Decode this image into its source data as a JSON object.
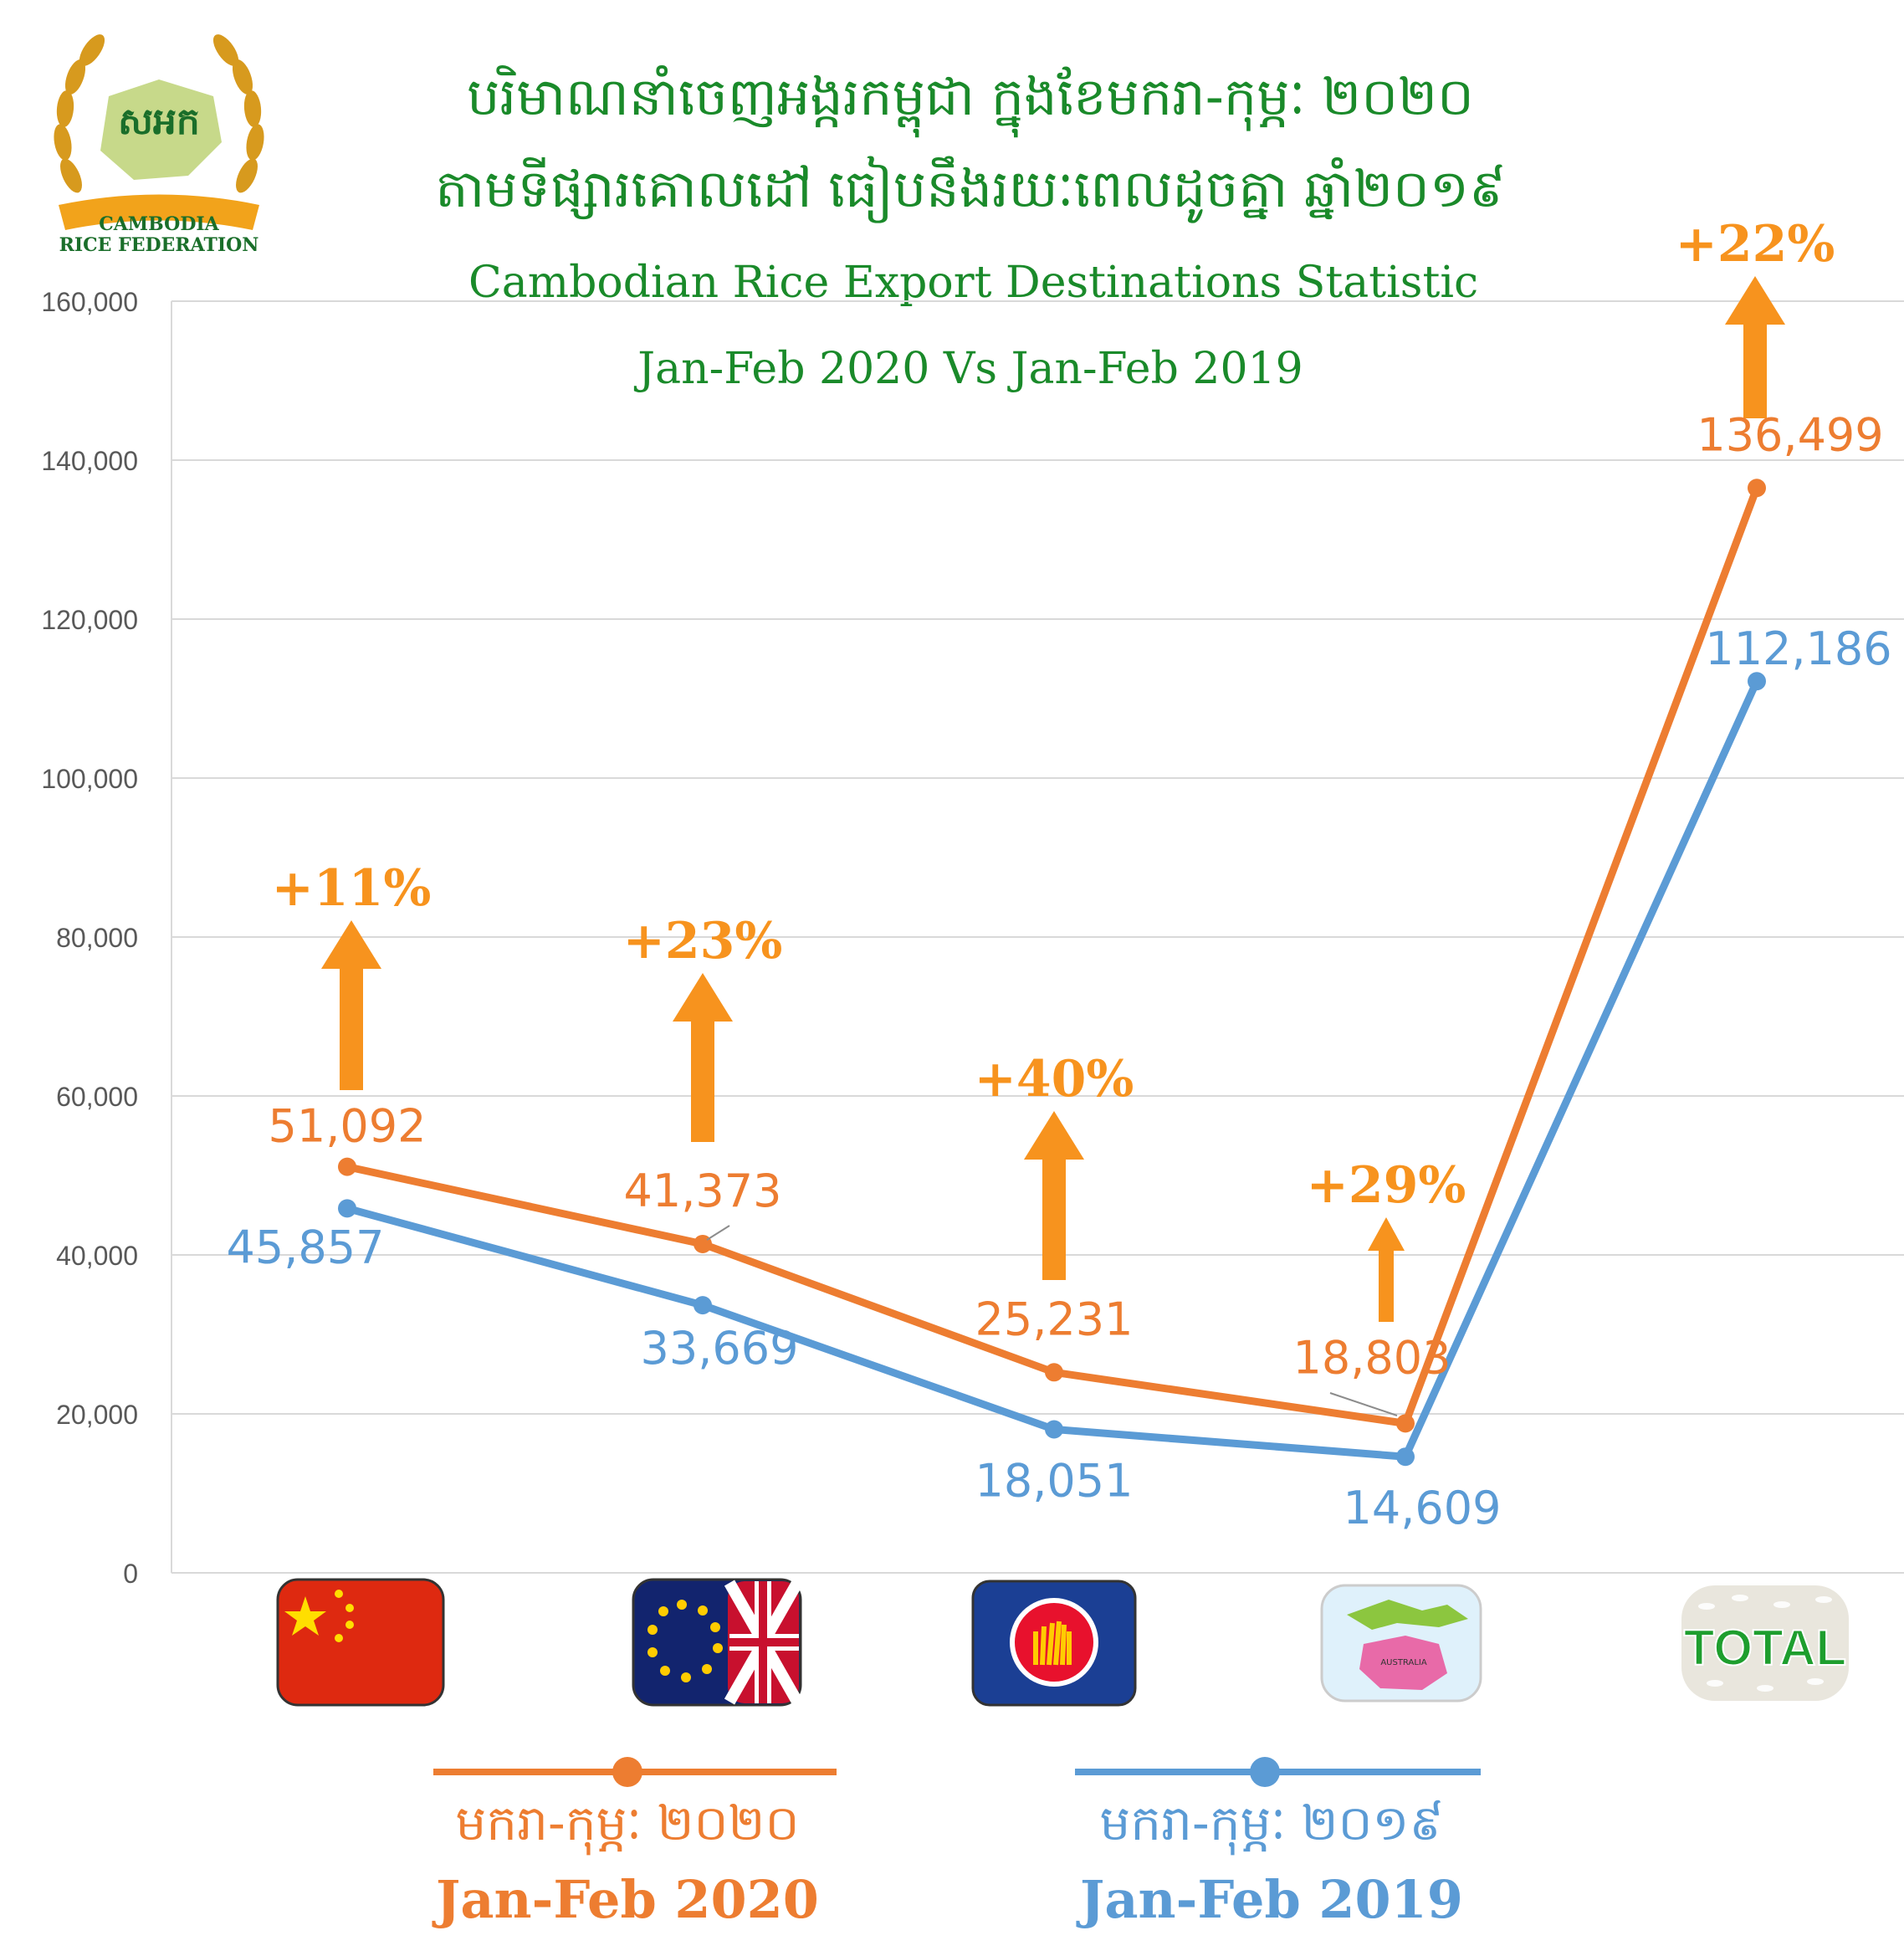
{
  "logo": {
    "org_kh": "សអក",
    "org_en_line1": "CAMBODIA",
    "org_en_line2": "RICE FEDERATION"
  },
  "title_kh_line1": "បរិមាណនាំចេញអង្ករកម្ពុជា ក្នុងខែមករា-កុម្ភៈ ២០២០",
  "title_kh_line2": "តាមទីផ្សារគោលដៅ ធៀបនឹងរយៈពេលដូចគ្នា ឆ្នាំ២០១៩",
  "title_en_line1": "Cambodian Rice Export Destinations Statistic",
  "title_en_line2": "Jan-Feb 2020 Vs Jan-Feb 2019",
  "colors": {
    "series_2020": "#ed7d31",
    "series_2019": "#5b9bd5",
    "growth_arrow": "#f7931e",
    "title_green": "#1a8a2a"
  },
  "legend": {
    "s2020_kh": "មករា-កុម្ភៈ ២០២០",
    "s2020_en": "Jan-Feb 2020",
    "s2019_kh": "មករា-កុម្ភៈ ២០១៩",
    "s2019_en": "Jan-Feb 2019"
  },
  "chart_data": {
    "type": "line",
    "categories": [
      "china-flag-icon",
      "eu-uk-flag-icon",
      "asean-flag-icon",
      "oceania-map-icon",
      "total-rice-icon"
    ],
    "category_icon_text": {
      "total": "TOTAL",
      "australia": "AUSTRALIA"
    },
    "series": [
      {
        "name": "Jan-Feb 2020",
        "values": [
          51092,
          41373,
          25231,
          18803,
          136499
        ],
        "labels": [
          "51,092",
          "41,373",
          "25,231",
          "18,803",
          "136,499"
        ]
      },
      {
        "name": "Jan-Feb 2019",
        "values": [
          45857,
          33669,
          18051,
          14609,
          112186
        ],
        "labels": [
          "45,857",
          "33,669",
          "18,051",
          "14,609",
          "112,186"
        ]
      }
    ],
    "growth": [
      "+11%",
      "+23%",
      "+40%",
      "+29%",
      "+22%"
    ],
    "y_ticks": [
      "0",
      "20,000",
      "40,000",
      "60,000",
      "80,000",
      "100,000",
      "120,000",
      "140,000",
      "160,000"
    ],
    "ylim": [
      0,
      160000
    ],
    "grid": true,
    "legend_position": "bottom"
  }
}
